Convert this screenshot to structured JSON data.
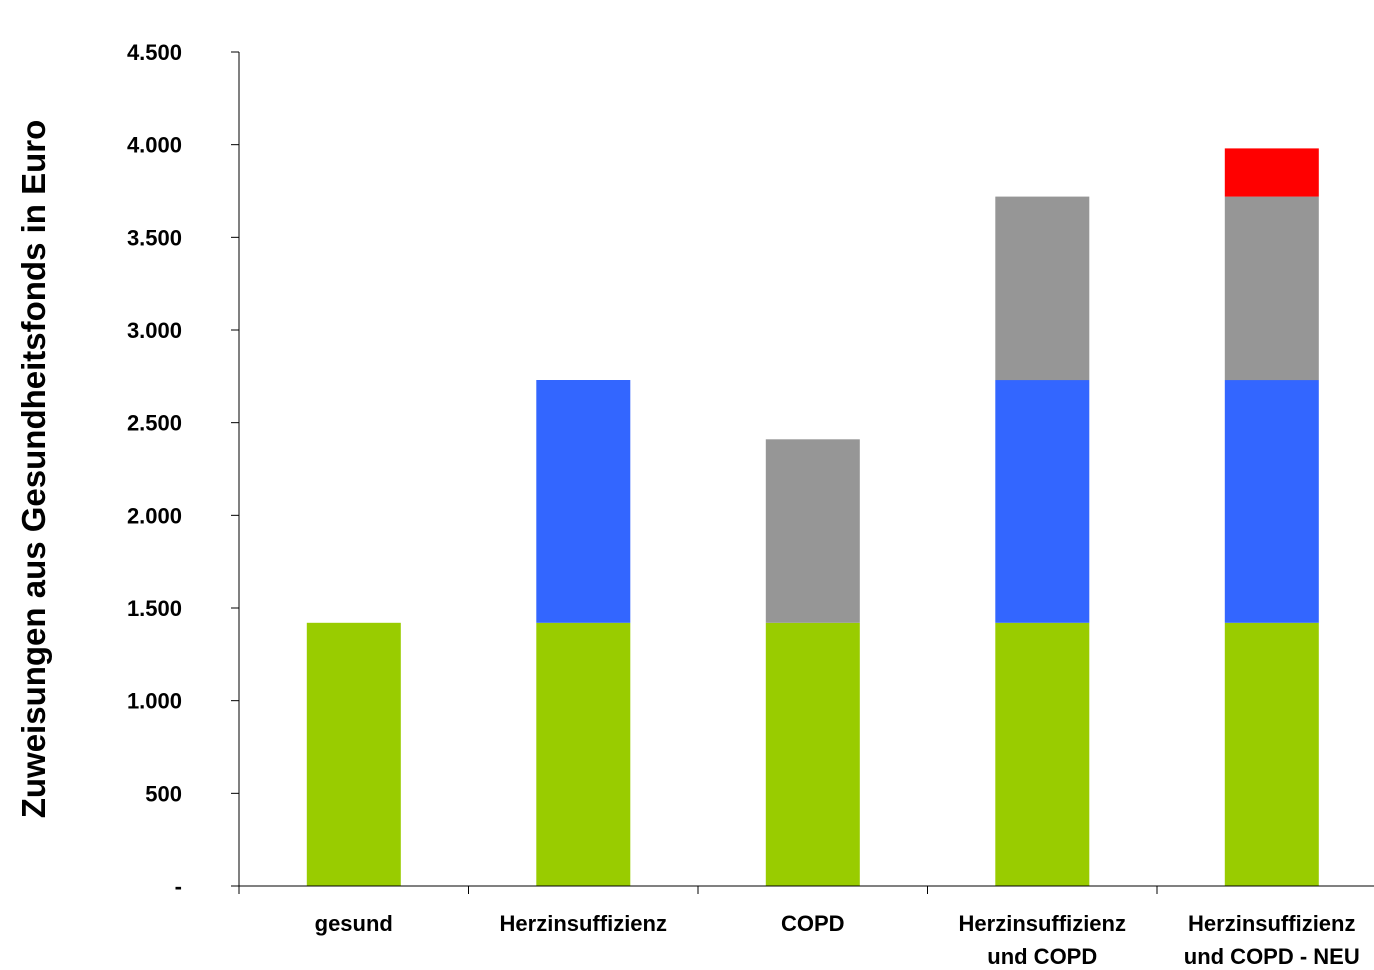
{
  "chart_data": {
    "type": "bar",
    "stacked": true,
    "title": "",
    "xlabel": "",
    "ylabel": "Zuweisungen aus Gesundheitsfonds in Euro",
    "ylim": [
      0,
      4500
    ],
    "yticks": [
      "-",
      "500",
      "1.000",
      "1.500",
      "2.000",
      "2.500",
      "3.000",
      "3.500",
      "4.000",
      "4.500"
    ],
    "categories": [
      [
        "gesund"
      ],
      [
        "Herzinsuffizienz"
      ],
      [
        "COPD"
      ],
      [
        "Herzinsuffizienz",
        "und COPD"
      ],
      [
        "Herzinsuffizienz",
        "und COPD  -  NEU"
      ]
    ],
    "grid": false,
    "legend": "none",
    "series": [
      {
        "color": "#99cc00",
        "values": [
          1420,
          1420,
          1420,
          1420,
          1420
        ]
      },
      {
        "color": "#3366ff",
        "values": [
          0,
          1310,
          0,
          1310,
          1310
        ]
      },
      {
        "color": "#969696",
        "values": [
          0,
          0,
          990,
          990,
          990
        ]
      },
      {
        "color": "#ff0000",
        "values": [
          0,
          0,
          0,
          0,
          260
        ]
      }
    ]
  }
}
